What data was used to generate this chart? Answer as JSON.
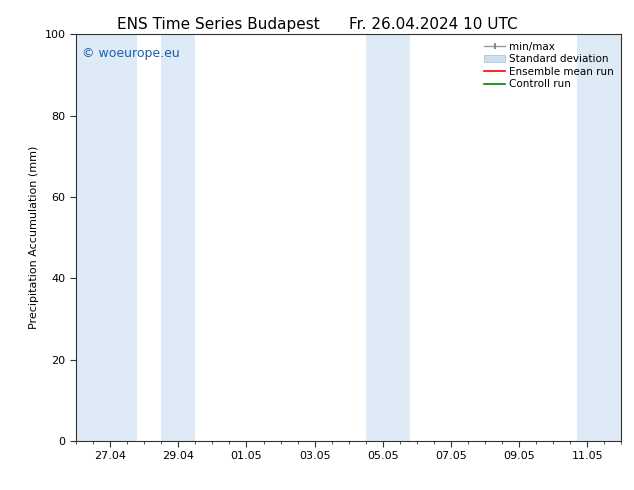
{
  "title_left": "ENS Time Series Budapest",
  "title_right": "Fr. 26.04.2024 10 UTC",
  "ylabel": "Precipitation Accumulation (mm)",
  "ylim": [
    0,
    100
  ],
  "yticks": [
    0,
    20,
    40,
    60,
    80,
    100
  ],
  "x_tick_labels": [
    "27.04",
    "29.04",
    "01.05",
    "03.05",
    "05.05",
    "07.05",
    "09.05",
    "11.05"
  ],
  "x_min": 0.0,
  "x_max": 16.0,
  "x_tick_positions": [
    1.0,
    3.0,
    5.0,
    7.0,
    9.0,
    11.0,
    13.0,
    15.0
  ],
  "shaded_bands": [
    {
      "x_start": 0.0,
      "x_end": 1.8,
      "color": "#deeaf5"
    },
    {
      "x_start": 2.5,
      "x_end": 3.5,
      "color": "#deeaf5"
    },
    {
      "x_start": 8.5,
      "x_end": 9.8,
      "color": "#deeaf5"
    },
    {
      "x_start": 14.7,
      "x_end": 16.0,
      "color": "#deeaf5"
    }
  ],
  "watermark_text": "© woeurope.eu",
  "watermark_color": "#1a5faf",
  "watermark_fontsize": 9,
  "legend_entries": [
    {
      "label": "min/max",
      "color": "#aaaaaa",
      "type": "errorbar"
    },
    {
      "label": "Standard deviation",
      "color": "#ccdff0",
      "type": "patch"
    },
    {
      "label": "Ensemble mean run",
      "color": "red",
      "type": "line"
    },
    {
      "label": "Controll run",
      "color": "green",
      "type": "line"
    }
  ],
  "background_color": "#ffffff",
  "plot_bg_color": "#ffffff",
  "title_fontsize": 11,
  "axis_label_fontsize": 8,
  "tick_fontsize": 8,
  "legend_fontsize": 7.5
}
